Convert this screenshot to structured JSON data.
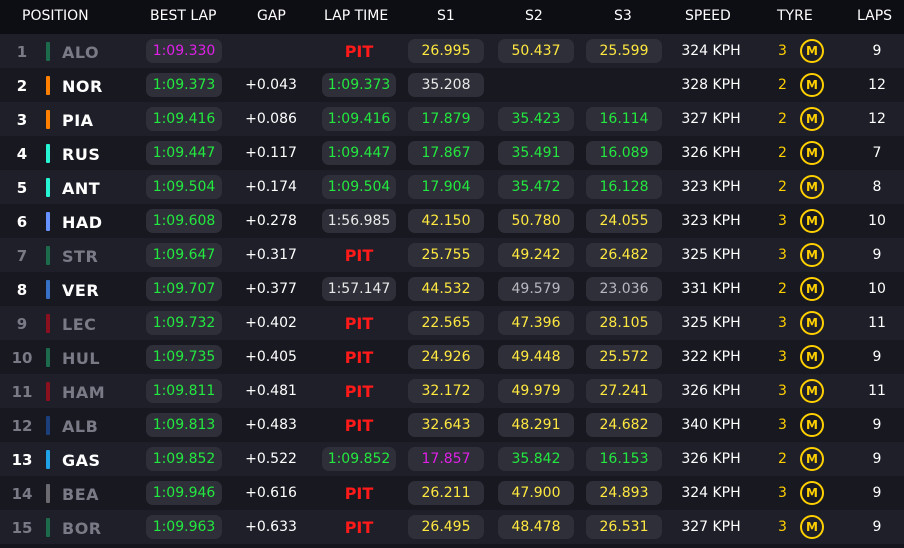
{
  "header": {
    "position": "POSITION",
    "best_lap": "BEST LAP",
    "gap": "GAP",
    "lap_time": "LAP TIME",
    "s1": "S1",
    "s2": "S2",
    "s3": "S3",
    "speed": "SPEED",
    "tyre": "TYRE",
    "laps": "LAPS"
  },
  "tyre_compound_letter": "M",
  "colors": {
    "personal_best": "#23e83f",
    "overall_best": "#e020e8",
    "yellow_sector": "#ffe840",
    "pit": "#ff1a1a",
    "tyre_medium": "#ffd000"
  },
  "rows": [
    {
      "pos": "1",
      "code": "ALO",
      "team_color": "#1b6b4c",
      "out": true,
      "best": "1:09.330",
      "best_c": "purple",
      "gap": "",
      "lap": "PIT",
      "lap_c": "pit",
      "s1": "26.995",
      "s1_c": "yellow",
      "s2": "50.437",
      "s2_c": "yellow",
      "s3": "25.599",
      "s3_c": "yellow",
      "speed": "324 KPH",
      "tyre_laps": "3",
      "laps": "9"
    },
    {
      "pos": "2",
      "code": "NOR",
      "team_color": "#ff8000",
      "out": false,
      "best": "1:09.373",
      "best_c": "green",
      "gap": "+0.043",
      "lap": "1:09.373",
      "lap_c": "green",
      "s1": "35.208",
      "s1_c": "white",
      "s2": "",
      "s2_c": "white",
      "s3": "",
      "s3_c": "white",
      "speed": "328 KPH",
      "tyre_laps": "2",
      "laps": "12"
    },
    {
      "pos": "3",
      "code": "PIA",
      "team_color": "#ff8000",
      "out": false,
      "best": "1:09.416",
      "best_c": "green",
      "gap": "+0.086",
      "lap": "1:09.416",
      "lap_c": "green",
      "s1": "17.879",
      "s1_c": "green",
      "s2": "35.423",
      "s2_c": "green",
      "s3": "16.114",
      "s3_c": "green",
      "speed": "327 KPH",
      "tyre_laps": "2",
      "laps": "12"
    },
    {
      "pos": "4",
      "code": "RUS",
      "team_color": "#27f4d2",
      "out": false,
      "best": "1:09.447",
      "best_c": "green",
      "gap": "+0.117",
      "lap": "1:09.447",
      "lap_c": "green",
      "s1": "17.867",
      "s1_c": "green",
      "s2": "35.491",
      "s2_c": "green",
      "s3": "16.089",
      "s3_c": "green",
      "speed": "326 KPH",
      "tyre_laps": "2",
      "laps": "7"
    },
    {
      "pos": "5",
      "code": "ANT",
      "team_color": "#27f4d2",
      "out": false,
      "best": "1:09.504",
      "best_c": "green",
      "gap": "+0.174",
      "lap": "1:09.504",
      "lap_c": "green",
      "s1": "17.904",
      "s1_c": "green",
      "s2": "35.472",
      "s2_c": "green",
      "s3": "16.128",
      "s3_c": "green",
      "speed": "323 KPH",
      "tyre_laps": "2",
      "laps": "8"
    },
    {
      "pos": "6",
      "code": "HAD",
      "team_color": "#6692ff",
      "out": false,
      "best": "1:09.608",
      "best_c": "green",
      "gap": "+0.278",
      "lap": "1:56.985",
      "lap_c": "white",
      "s1": "42.150",
      "s1_c": "yellow",
      "s2": "50.780",
      "s2_c": "yellow",
      "s3": "24.055",
      "s3_c": "yellow",
      "speed": "323 KPH",
      "tyre_laps": "3",
      "laps": "10"
    },
    {
      "pos": "7",
      "code": "STR",
      "team_color": "#1b6b4c",
      "out": true,
      "best": "1:09.647",
      "best_c": "green",
      "gap": "+0.317",
      "lap": "PIT",
      "lap_c": "pit",
      "s1": "25.755",
      "s1_c": "yellow",
      "s2": "49.242",
      "s2_c": "yellow",
      "s3": "26.482",
      "s3_c": "yellow",
      "speed": "325 KPH",
      "tyre_laps": "3",
      "laps": "9"
    },
    {
      "pos": "8",
      "code": "VER",
      "team_color": "#3671c6",
      "out": false,
      "best": "1:09.707",
      "best_c": "green",
      "gap": "+0.377",
      "lap": "1:57.147",
      "lap_c": "white",
      "s1": "44.532",
      "s1_c": "yellow",
      "s2": "49.579",
      "s2_c": "grey",
      "s3": "23.036",
      "s3_c": "grey",
      "speed": "331 KPH",
      "tyre_laps": "2",
      "laps": "10"
    },
    {
      "pos": "9",
      "code": "LEC",
      "team_color": "#8a1020",
      "out": true,
      "best": "1:09.732",
      "best_c": "green",
      "gap": "+0.402",
      "lap": "PIT",
      "lap_c": "pit",
      "s1": "22.565",
      "s1_c": "yellow",
      "s2": "47.396",
      "s2_c": "yellow",
      "s3": "28.105",
      "s3_c": "yellow",
      "speed": "325 KPH",
      "tyre_laps": "3",
      "laps": "11"
    },
    {
      "pos": "10",
      "code": "HUL",
      "team_color": "#1b6b4c",
      "out": true,
      "best": "1:09.735",
      "best_c": "green",
      "gap": "+0.405",
      "lap": "PIT",
      "lap_c": "pit",
      "s1": "24.926",
      "s1_c": "yellow",
      "s2": "49.448",
      "s2_c": "yellow",
      "s3": "25.572",
      "s3_c": "yellow",
      "speed": "322 KPH",
      "tyre_laps": "3",
      "laps": "9"
    },
    {
      "pos": "11",
      "code": "HAM",
      "team_color": "#8a1020",
      "out": true,
      "best": "1:09.811",
      "best_c": "green",
      "gap": "+0.481",
      "lap": "PIT",
      "lap_c": "pit",
      "s1": "32.172",
      "s1_c": "yellow",
      "s2": "49.979",
      "s2_c": "yellow",
      "s3": "27.241",
      "s3_c": "yellow",
      "speed": "326 KPH",
      "tyre_laps": "3",
      "laps": "11"
    },
    {
      "pos": "12",
      "code": "ALB",
      "team_color": "#1a3f7a",
      "out": true,
      "best": "1:09.813",
      "best_c": "green",
      "gap": "+0.483",
      "lap": "PIT",
      "lap_c": "pit",
      "s1": "32.643",
      "s1_c": "yellow",
      "s2": "48.291",
      "s2_c": "yellow",
      "s3": "24.682",
      "s3_c": "yellow",
      "speed": "340 KPH",
      "tyre_laps": "3",
      "laps": "9"
    },
    {
      "pos": "13",
      "code": "GAS",
      "team_color": "#1fa3e6",
      "out": false,
      "best": "1:09.852",
      "best_c": "green",
      "gap": "+0.522",
      "lap": "1:09.852",
      "lap_c": "green",
      "s1": "17.857",
      "s1_c": "purple",
      "s2": "35.842",
      "s2_c": "green",
      "s3": "16.153",
      "s3_c": "green",
      "speed": "326 KPH",
      "tyre_laps": "2",
      "laps": "9"
    },
    {
      "pos": "14",
      "code": "BEA",
      "team_color": "#6a6a70",
      "out": true,
      "best": "1:09.946",
      "best_c": "green",
      "gap": "+0.616",
      "lap": "PIT",
      "lap_c": "pit",
      "s1": "26.211",
      "s1_c": "yellow",
      "s2": "47.900",
      "s2_c": "yellow",
      "s3": "24.893",
      "s3_c": "yellow",
      "speed": "324 KPH",
      "tyre_laps": "3",
      "laps": "9"
    },
    {
      "pos": "15",
      "code": "BOR",
      "team_color": "#1b6b4c",
      "out": true,
      "best": "1:09.963",
      "best_c": "green",
      "gap": "+0.633",
      "lap": "PIT",
      "lap_c": "pit",
      "s1": "26.495",
      "s1_c": "yellow",
      "s2": "48.478",
      "s2_c": "yellow",
      "s3": "26.531",
      "s3_c": "yellow",
      "speed": "327 KPH",
      "tyre_laps": "3",
      "laps": "9"
    }
  ]
}
